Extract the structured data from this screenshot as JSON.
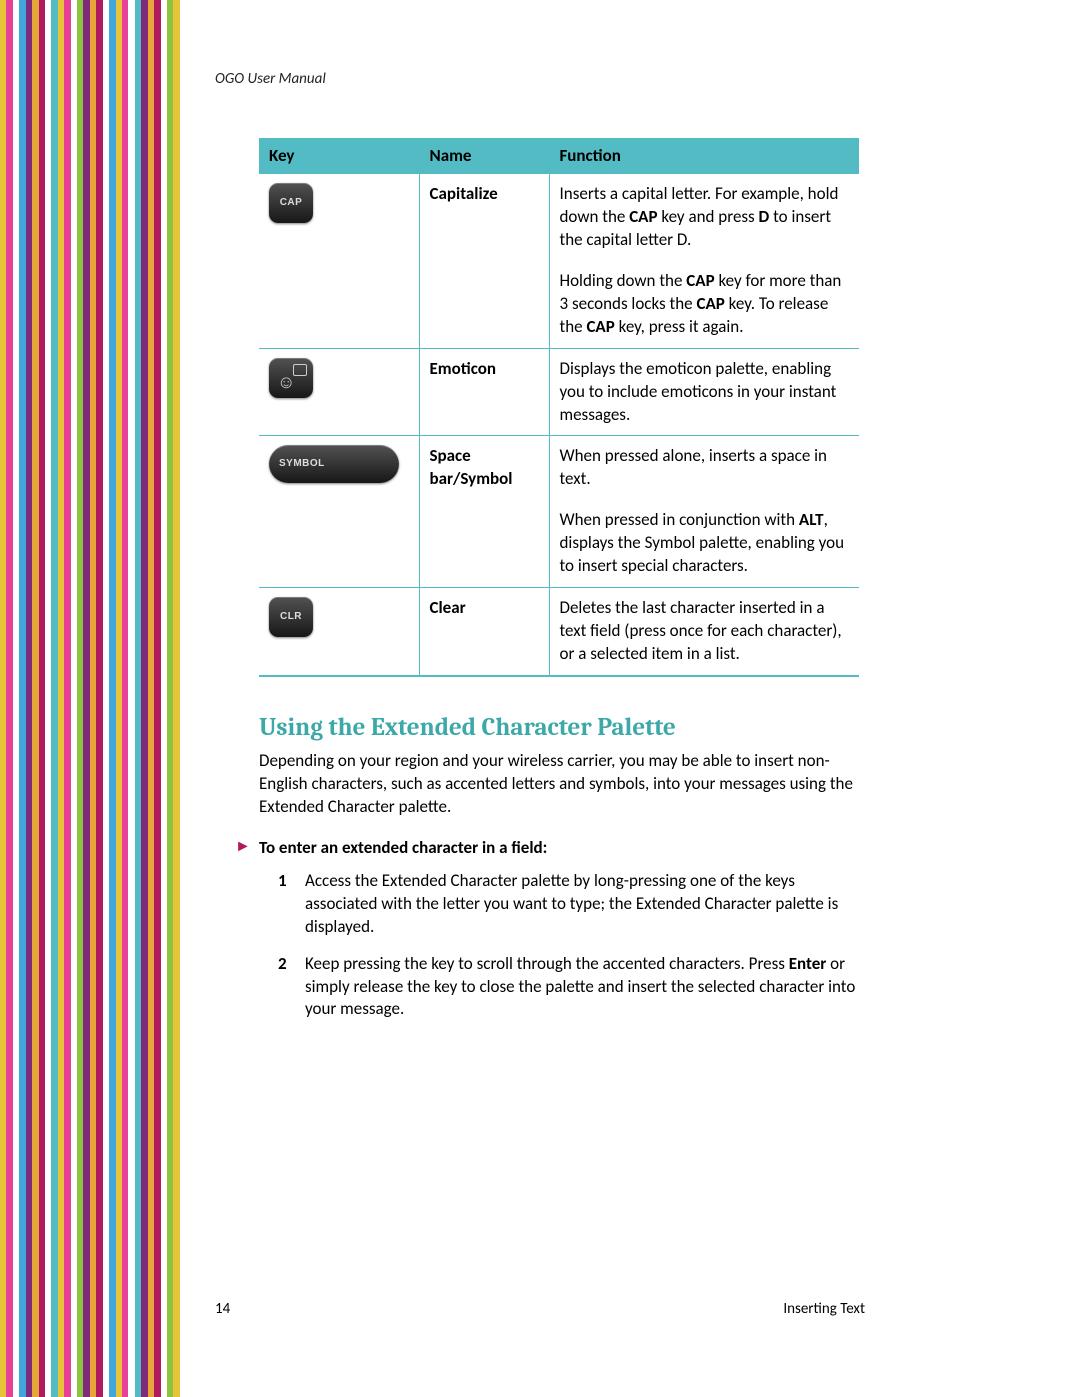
{
  "stripes": [
    "#e7c33a",
    "#e64097",
    "#ffffff",
    "#40a7dd",
    "#7f2a7a",
    "#e7a63a",
    "#b01a5e",
    "#ffffff",
    "#53bbc4",
    "#e7c33a",
    "#e64097",
    "#ffffff",
    "#8bc53f",
    "#7f2a7a",
    "#e7a63a",
    "#b01a5e",
    "#ffffff",
    "#40a7dd",
    "#e7c33a",
    "#e64097",
    "#ffffff",
    "#53bbc4",
    "#7f2a7a",
    "#e7a63a",
    "#b01a5e",
    "#ffffff",
    "#8bc53f",
    "#e7c33a"
  ],
  "header": "OGO User Manual",
  "table": {
    "headers": [
      "Key",
      "Name",
      "Function"
    ],
    "rows": [
      {
        "key_label": "CAP",
        "key_type": "small",
        "name": "Capitalize",
        "func_html": "Inserts a capital letter. For example, hold down the <b>CAP</b> key and press <b>D</b> to insert the capital letter D."
      },
      {
        "continuation": true,
        "func_html": "Holding down the <b>CAP</b> key for more than 3 seconds locks the <b>CAP</b> key. To release the <b>CAP</b> key, press it again."
      },
      {
        "key_label": "",
        "key_type": "emo",
        "name": "Emoticon",
        "func_html": "Displays the emoticon palette, enabling you to include emoticons in your instant messages."
      },
      {
        "key_label": "SYMBOL",
        "key_type": "wide",
        "name": "Space bar/Symbol",
        "func_html": "When pressed alone, inserts a space in text."
      },
      {
        "continuation": true,
        "func_html": "When pressed in conjunction with <b>ALT</b>, displays the Symbol palette, enabling you to insert special characters."
      },
      {
        "key_label": "CLR",
        "key_type": "small",
        "name": "Clear",
        "func_html": "Deletes the last character inserted in a text field (press once for each character), or a selected item in a list."
      }
    ]
  },
  "section_title": "Using the Extended Character Palette",
  "section_para": "Depending on your region and your wireless carrier, you may be able to insert non-English characters, such as accented letters and symbols, into your messages using the Extended Character palette.",
  "instr_heading": "To enter an extended character in a field:",
  "steps": [
    "Access the Extended Character palette by long-pressing one of the keys associated with the letter you want to type; the Extended Character palette is displayed.",
    "Keep pressing the key to scroll through the accented characters. Press <b>Enter</b> or simply release the key to close the palette and insert the selected character into your message."
  ],
  "footer": {
    "page": "14",
    "section": "Inserting Text"
  }
}
